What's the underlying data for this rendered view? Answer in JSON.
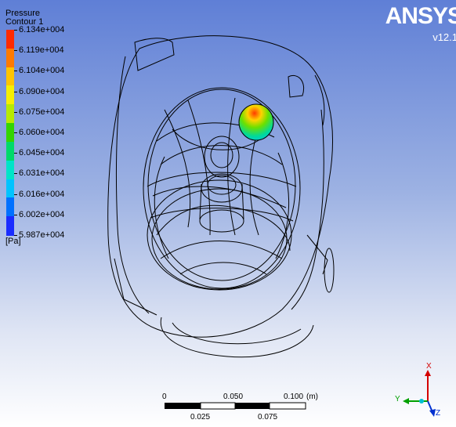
{
  "legend": {
    "title": "Pressure",
    "subtitle": "Contour 1",
    "unit": "[Pa]",
    "ticks": [
      "6.134e+004",
      "6.119e+004",
      "6.104e+004",
      "6.090e+004",
      "6.075e+004",
      "6.060e+004",
      "6.045e+004",
      "6.031e+004",
      "6.016e+004",
      "6.002e+004",
      "5.987e+004"
    ],
    "colors": [
      "#ff2a00",
      "#ff7a00",
      "#ffc400",
      "#f6ef00",
      "#b7ea00",
      "#33d400",
      "#00d96a",
      "#00e4c8",
      "#00c3ff",
      "#0070ff",
      "#1a2cff"
    ]
  },
  "branding": {
    "logo": "ANSYS",
    "version": "v12.1"
  },
  "scale": {
    "labels_top": [
      "0",
      "0.050",
      "0.100"
    ],
    "unit": "(m)",
    "labels_bottom": [
      "0.025",
      "0.075"
    ]
  },
  "axes": {
    "x": "X",
    "y": "Y",
    "z": "Z"
  }
}
